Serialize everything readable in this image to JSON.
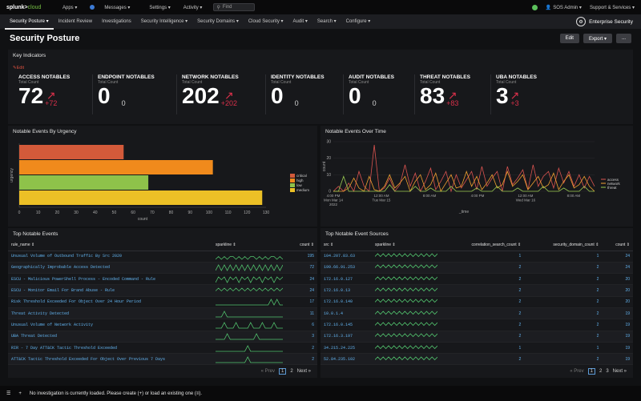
{
  "topbar": {
    "logo_a": "splunk>",
    "logo_b": "cloud",
    "menu": [
      "Apps ▾",
      "Messages ▾",
      "Settings ▾",
      "Activity ▾"
    ],
    "find_placeholder": "Find",
    "user": "SOS Admin ▾",
    "support": "Support & Services ▾"
  },
  "nav": {
    "items": [
      "Security Posture ▾",
      "Incident Review",
      "Investigations",
      "Security Intelligence ▾",
      "Security Domains ▾",
      "Cloud Security ▾",
      "Audit ▾",
      "Search ▾",
      "Configure ▾"
    ],
    "app_name": "Enterprise Security"
  },
  "page": {
    "title": "Security Posture",
    "edit": "Edit",
    "export": "Export ▾",
    "more": "..."
  },
  "key_indicators": {
    "title": "Key Indicators",
    "edit": "Edit",
    "subtitle": "Total Count",
    "items": [
      {
        "title": "ACCESS NOTABLES",
        "value": "72",
        "delta": "+72",
        "change": "up"
      },
      {
        "title": "ENDPOINT NOTABLES",
        "value": "0",
        "delta": "0",
        "change": "none"
      },
      {
        "title": "NETWORK NOTABLES",
        "value": "202",
        "delta": "+202",
        "change": "up"
      },
      {
        "title": "IDENTITY NOTABLES",
        "value": "0",
        "delta": "0",
        "change": "none"
      },
      {
        "title": "AUDIT NOTABLES",
        "value": "0",
        "delta": "0",
        "change": "none"
      },
      {
        "title": "THREAT NOTABLES",
        "value": "83",
        "delta": "+83",
        "change": "up"
      },
      {
        "title": "UBA NOTABLES",
        "value": "3",
        "delta": "+3",
        "change": "up"
      }
    ]
  },
  "urgency_chart": {
    "title": "Notable Events By Urgency",
    "chart_data": {
      "type": "bar",
      "orientation": "horizontal",
      "categories": [
        "critical",
        "high",
        "low",
        "medium"
      ],
      "values": [
        55,
        102,
        68,
        128
      ],
      "colors": [
        "#d35a3a",
        "#f08a1c",
        "#8ec24a",
        "#ecc026"
      ],
      "xlabel": "count",
      "ylabel": "urgency",
      "xlim": [
        0,
        130
      ],
      "xticks": [
        "0",
        "10",
        "20",
        "30",
        "40",
        "50",
        "60",
        "70",
        "80",
        "90",
        "100",
        "110",
        "120",
        "130"
      ],
      "legend": [
        "critical",
        "high",
        "low",
        "medium"
      ]
    }
  },
  "time_chart": {
    "title": "Notable Events Over Time",
    "chart_data": {
      "type": "line",
      "xlabel": "_time",
      "ylabel": "count",
      "ylim": [
        0,
        30
      ],
      "yticks": [
        "0",
        "10",
        "20",
        "30"
      ],
      "xticks": [
        "4:00 PM\nMon Mar 14\n2022",
        "12:00 AM\nTue Mar 15",
        "8:00 AM",
        "4:00 PM",
        "12:00 AM\nWed Mar 16",
        "8:00 AM"
      ],
      "series": [
        {
          "name": "access",
          "color": "#d9534f",
          "values": [
            0,
            3,
            0,
            5,
            0,
            12,
            3,
            0,
            28,
            0,
            2,
            8,
            0,
            4,
            16,
            3,
            11,
            0,
            6,
            14,
            1,
            6,
            12,
            0,
            10,
            2,
            7,
            12,
            1,
            15,
            3,
            8,
            12,
            0,
            15,
            4,
            8,
            13,
            1,
            16,
            3,
            9,
            12,
            2,
            14,
            5,
            12,
            3,
            10,
            2,
            9,
            3
          ]
        },
        {
          "name": "network",
          "color": "#f0a030",
          "values": [
            0,
            0,
            0,
            2,
            8,
            2,
            0,
            9,
            1,
            0,
            3,
            10,
            2,
            5,
            9,
            0,
            6,
            10,
            1,
            4,
            11,
            0,
            5,
            10,
            2,
            3,
            12,
            3,
            9,
            1,
            5,
            10,
            2,
            4,
            12,
            3,
            6,
            10,
            1,
            5,
            9,
            2,
            4,
            11,
            1,
            6,
            10,
            2,
            4,
            9,
            3,
            0
          ]
        },
        {
          "name": "threat",
          "color": "#9acb52",
          "values": [
            0,
            0,
            9,
            0,
            0,
            0,
            0,
            0,
            0,
            0,
            0,
            4,
            0,
            0,
            0,
            0,
            3,
            0,
            0,
            2,
            0,
            0,
            0,
            3,
            0,
            0,
            0,
            0,
            2,
            0,
            0,
            0,
            3,
            0,
            0,
            0,
            2,
            0,
            0,
            0,
            0,
            3,
            0,
            0,
            0,
            2,
            0,
            0,
            0,
            3,
            0,
            0
          ]
        }
      ],
      "legend": [
        "access",
        "network",
        "threat"
      ]
    }
  },
  "top_events": {
    "title": "Top Notable Events",
    "columns": [
      "rule_name ⇕",
      "sparkline ⇕",
      "count ⇕"
    ],
    "rows": [
      {
        "name": "Unusual Volume of Outbound Traffic By Src 2020",
        "count": "195",
        "spark": [
          0,
          1,
          0,
          1,
          0,
          1,
          1,
          0,
          1,
          0,
          1,
          0,
          1,
          1,
          0,
          1,
          0,
          1,
          0,
          1,
          1,
          0,
          1,
          0
        ]
      },
      {
        "name": "Geographically Improbable Access Detected",
        "count": "72",
        "spark": [
          0,
          2,
          0,
          2,
          0,
          2,
          0,
          2,
          0,
          2,
          0,
          2,
          0,
          2,
          0,
          2,
          0,
          2,
          0,
          2,
          0,
          2,
          0,
          2
        ]
      },
      {
        "name": "ESCU - Malicious PowerShell Process - Encoded Command - Rule",
        "count": "24",
        "spark": [
          0,
          2,
          1,
          2,
          0,
          2,
          1,
          2,
          0,
          2,
          1,
          2,
          0,
          2,
          1,
          2,
          0,
          2,
          1,
          2,
          0,
          2,
          1,
          2
        ]
      },
      {
        "name": "ESCU - Monitor Email For Brand Abuse - Rule",
        "count": "24",
        "spark": [
          1,
          2,
          1,
          2,
          1,
          2,
          1,
          2,
          1,
          2,
          1,
          2,
          1,
          2,
          1,
          2,
          1,
          2,
          1,
          2,
          1,
          2,
          1,
          2
        ]
      },
      {
        "name": "Risk Threshold Exceeded For Object Over 24 Hour Period",
        "count": "17",
        "spark": [
          0,
          0,
          0,
          0,
          0,
          0,
          0,
          0,
          0,
          0,
          0,
          0,
          0,
          0,
          0,
          0,
          0,
          0,
          0,
          2,
          0,
          2,
          0,
          0
        ]
      },
      {
        "name": "Threat Activity Detected",
        "count": "11",
        "spark": [
          0,
          0,
          0,
          2,
          0,
          0,
          0,
          0,
          0,
          0,
          0,
          0,
          0,
          0,
          0,
          0,
          0,
          0,
          0,
          0,
          0,
          0,
          0,
          0
        ]
      },
      {
        "name": "Unusual Volume of Network Activity",
        "count": "6",
        "spark": [
          0,
          0,
          0,
          2,
          0,
          0,
          0,
          2,
          0,
          0,
          0,
          0,
          2,
          0,
          0,
          0,
          2,
          0,
          0,
          0,
          2,
          0,
          0,
          0
        ]
      },
      {
        "name": "UBA Threat Detected",
        "count": "3",
        "spark": [
          0,
          0,
          0,
          0,
          2,
          0,
          0,
          0,
          0,
          0,
          0,
          0,
          0,
          0,
          2,
          0,
          0,
          0,
          0,
          0,
          0,
          0,
          0,
          0
        ]
      },
      {
        "name": "RIR - 7 Day ATT&CK Tactic Threshold Exceeded",
        "count": "2",
        "spark": [
          0,
          0,
          0,
          0,
          0,
          0,
          0,
          0,
          0,
          0,
          0,
          2,
          0,
          0,
          0,
          0,
          0,
          0,
          0,
          0,
          0,
          0,
          0,
          0
        ]
      },
      {
        "name": "ATT&CK Tactic Threshold Exceeded For Object Over Previous 7 Days",
        "count": "2",
        "spark": [
          0,
          0,
          0,
          0,
          0,
          0,
          0,
          0,
          0,
          0,
          0,
          2,
          0,
          0,
          0,
          0,
          0,
          0,
          0,
          0,
          0,
          0,
          0,
          0
        ]
      }
    ],
    "pager": {
      "prev": "« Prev",
      "pages": [
        "1",
        "2"
      ],
      "next": "Next »"
    }
  },
  "top_sources": {
    "title": "Top Notable Event Sources",
    "columns": [
      "src ⇕",
      "sparkline ⇕",
      "correlation_search_count ⇕",
      "security_domain_count ⇕",
      "count ⇕"
    ],
    "rows": [
      {
        "src": "104.207.83.63",
        "csc": "1",
        "sdc": "1",
        "count": "24",
        "spark": [
          1,
          2,
          1,
          2,
          1,
          2,
          1,
          2,
          1,
          2,
          1,
          2,
          1,
          2,
          1,
          2,
          1,
          2,
          1,
          2,
          1,
          2,
          1,
          2
        ]
      },
      {
        "src": "199.66.91.253",
        "csc": "2",
        "sdc": "2",
        "count": "24",
        "spark": [
          1,
          2,
          1,
          2,
          1,
          2,
          1,
          2,
          1,
          2,
          1,
          2,
          1,
          2,
          1,
          2,
          1,
          2,
          1,
          2,
          1,
          2,
          1,
          2
        ]
      },
      {
        "src": "172.16.0.127",
        "csc": "2",
        "sdc": "2",
        "count": "20",
        "spark": [
          1,
          2,
          1,
          2,
          1,
          2,
          1,
          2,
          1,
          2,
          1,
          2,
          1,
          2,
          1,
          2,
          1,
          2,
          1,
          2,
          1,
          2,
          1,
          2
        ]
      },
      {
        "src": "172.16.0.13",
        "csc": "2",
        "sdc": "2",
        "count": "20",
        "spark": [
          1,
          2,
          1,
          2,
          1,
          2,
          1,
          2,
          1,
          2,
          1,
          2,
          1,
          2,
          1,
          2,
          1,
          2,
          1,
          2,
          1,
          2,
          1,
          2
        ]
      },
      {
        "src": "172.16.0.140",
        "csc": "2",
        "sdc": "2",
        "count": "20",
        "spark": [
          1,
          2,
          1,
          2,
          1,
          2,
          1,
          2,
          1,
          2,
          1,
          2,
          1,
          2,
          1,
          2,
          1,
          2,
          1,
          2,
          1,
          2,
          1,
          2
        ]
      },
      {
        "src": "10.0.1.4",
        "csc": "2",
        "sdc": "2",
        "count": "19",
        "spark": [
          1,
          2,
          1,
          2,
          1,
          2,
          1,
          2,
          1,
          2,
          1,
          2,
          1,
          2,
          1,
          2,
          1,
          2,
          1,
          2,
          1,
          2,
          1,
          2
        ]
      },
      {
        "src": "172.16.0.145",
        "csc": "2",
        "sdc": "2",
        "count": "19",
        "spark": [
          1,
          2,
          1,
          2,
          1,
          2,
          1,
          2,
          1,
          2,
          1,
          2,
          1,
          2,
          1,
          2,
          1,
          2,
          1,
          2,
          1,
          2,
          1,
          2
        ]
      },
      {
        "src": "172.16.3.197",
        "csc": "2",
        "sdc": "2",
        "count": "19",
        "spark": [
          1,
          2,
          1,
          2,
          1,
          2,
          1,
          2,
          1,
          2,
          1,
          2,
          1,
          2,
          1,
          2,
          1,
          2,
          1,
          2,
          1,
          2,
          1,
          2
        ]
      },
      {
        "src": "34.215.24.225",
        "csc": "1",
        "sdc": "1",
        "count": "19",
        "spark": [
          1,
          2,
          1,
          2,
          1,
          2,
          1,
          2,
          1,
          2,
          1,
          2,
          1,
          2,
          1,
          2,
          1,
          2,
          1,
          2,
          1,
          2,
          1,
          2
        ]
      },
      {
        "src": "52.84.235.102",
        "csc": "2",
        "sdc": "2",
        "count": "19",
        "spark": [
          1,
          2,
          1,
          2,
          1,
          2,
          1,
          2,
          1,
          2,
          1,
          2,
          1,
          2,
          1,
          2,
          1,
          2,
          1,
          2,
          1,
          2,
          1,
          2
        ]
      }
    ],
    "pager": {
      "prev": "« Prev",
      "pages": [
        "1",
        "2",
        "3"
      ],
      "next": "Next »"
    }
  },
  "footer": {
    "text": "No investigation is currently loaded. Please create (+) or load an existing one (≡)."
  },
  "colors": {
    "accent_red": "#d9304a",
    "link": "#62b3ef",
    "spark": "#52c46e"
  }
}
